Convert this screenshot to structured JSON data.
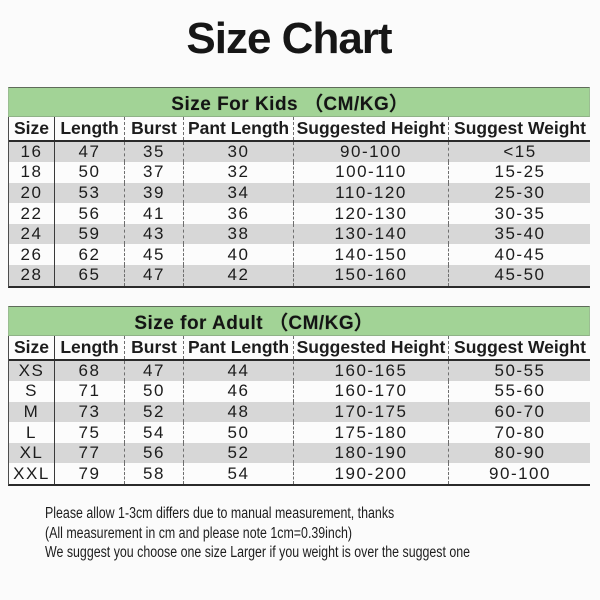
{
  "title": "Size Chart",
  "tables": [
    {
      "section_title": "Size For Kids （CM/KG）",
      "columns": [
        "Size",
        "Length",
        "Burst",
        "Pant Length",
        "Suggested Height",
        "Suggest Weight"
      ],
      "rows": [
        [
          "16",
          "47",
          "35",
          "30",
          "90-100",
          "<15"
        ],
        [
          "18",
          "50",
          "37",
          "32",
          "100-110",
          "15-25"
        ],
        [
          "20",
          "53",
          "39",
          "34",
          "110-120",
          "25-30"
        ],
        [
          "22",
          "56",
          "41",
          "36",
          "120-130",
          "30-35"
        ],
        [
          "24",
          "59",
          "43",
          "38",
          "130-140",
          "35-40"
        ],
        [
          "26",
          "62",
          "45",
          "40",
          "140-150",
          "40-45"
        ],
        [
          "28",
          "65",
          "47",
          "42",
          "150-160",
          "45-50"
        ]
      ]
    },
    {
      "section_title": "Size for Adult （CM/KG）",
      "columns": [
        "Size",
        "Length",
        "Burst",
        "Pant Length",
        "Suggested Height",
        "Suggest Weight"
      ],
      "rows": [
        [
          "XS",
          "68",
          "47",
          "44",
          "160-165",
          "50-55"
        ],
        [
          "S",
          "71",
          "50",
          "46",
          "160-170",
          "55-60"
        ],
        [
          "M",
          "73",
          "52",
          "48",
          "170-175",
          "60-70"
        ],
        [
          "L",
          "75",
          "54",
          "50",
          "175-180",
          "70-80"
        ],
        [
          "XL",
          "77",
          "56",
          "52",
          "180-190",
          "80-90"
        ],
        [
          "XXL",
          "79",
          "58",
          "54",
          "190-200",
          "90-100"
        ]
      ]
    }
  ],
  "footer": {
    "lines": [
      "Please allow 1-3cm differs due to manual measurement, thanks",
      "(All measurement in cm and please note 1cm=0.39inch)",
      "We suggest you choose one size Larger if you weight is over the suggest one"
    ]
  },
  "colors": {
    "section_header_bg": "#a2d396",
    "row_stripe": "#d7d7d7",
    "border_dark": "#2a2a2a",
    "text": "#1c1c1c"
  }
}
